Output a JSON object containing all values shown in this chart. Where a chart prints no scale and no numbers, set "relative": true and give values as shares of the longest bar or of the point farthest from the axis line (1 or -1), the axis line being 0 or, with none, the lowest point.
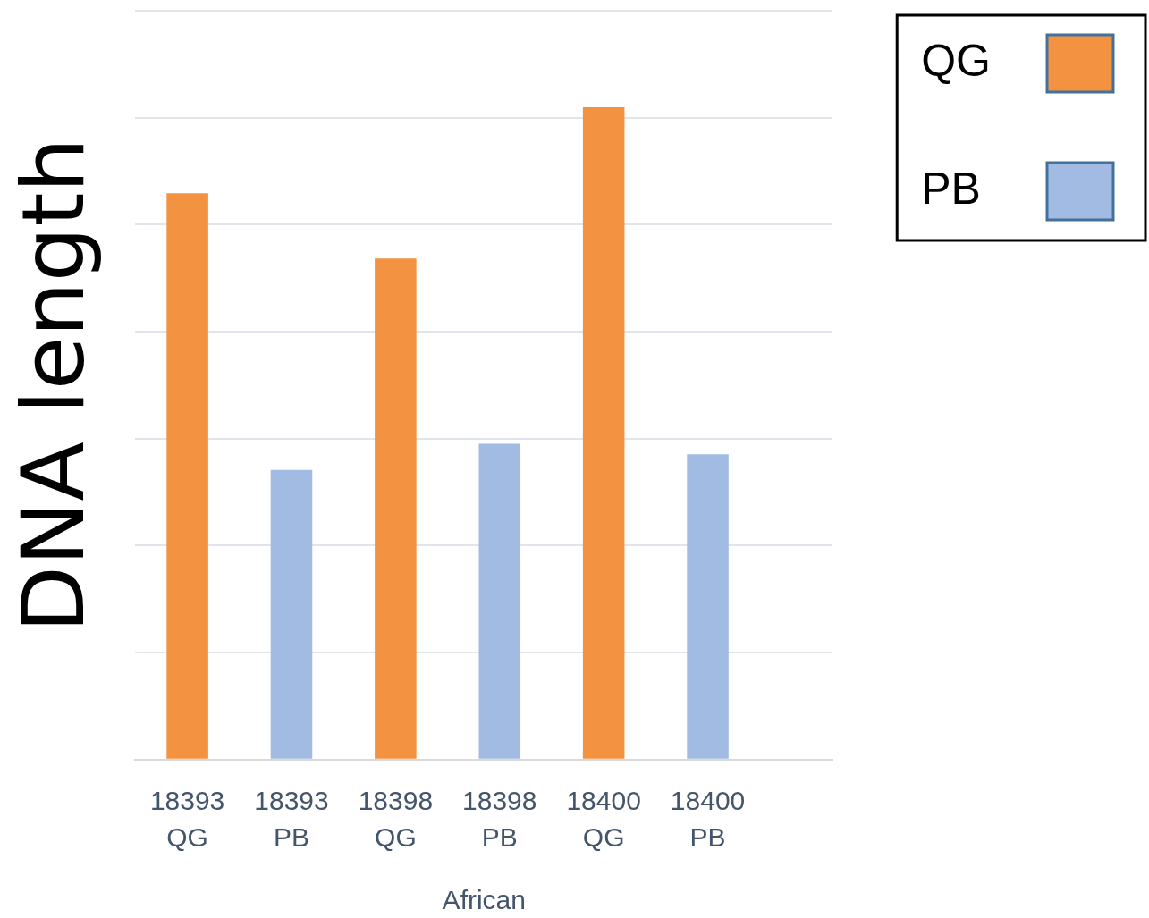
{
  "chart_data": {
    "type": "bar",
    "ylabel": "DNA length",
    "xlabel": "African",
    "categories": [
      "18393 QG",
      "18393 PB",
      "18398 QG",
      "18398 PB",
      "18400 QG",
      "18400 PB"
    ],
    "series": [
      {
        "name": "QG",
        "color": "#f39240",
        "values": [
          0.868,
          null,
          0.768,
          null,
          1,
          null
        ]
      },
      {
        "name": "PB",
        "color": "#a2bbe3",
        "values": [
          null,
          0.444,
          null,
          0.484,
          null,
          0.468
        ]
      }
    ],
    "relative": true,
    "grid": "y",
    "legend": "top right"
  }
}
